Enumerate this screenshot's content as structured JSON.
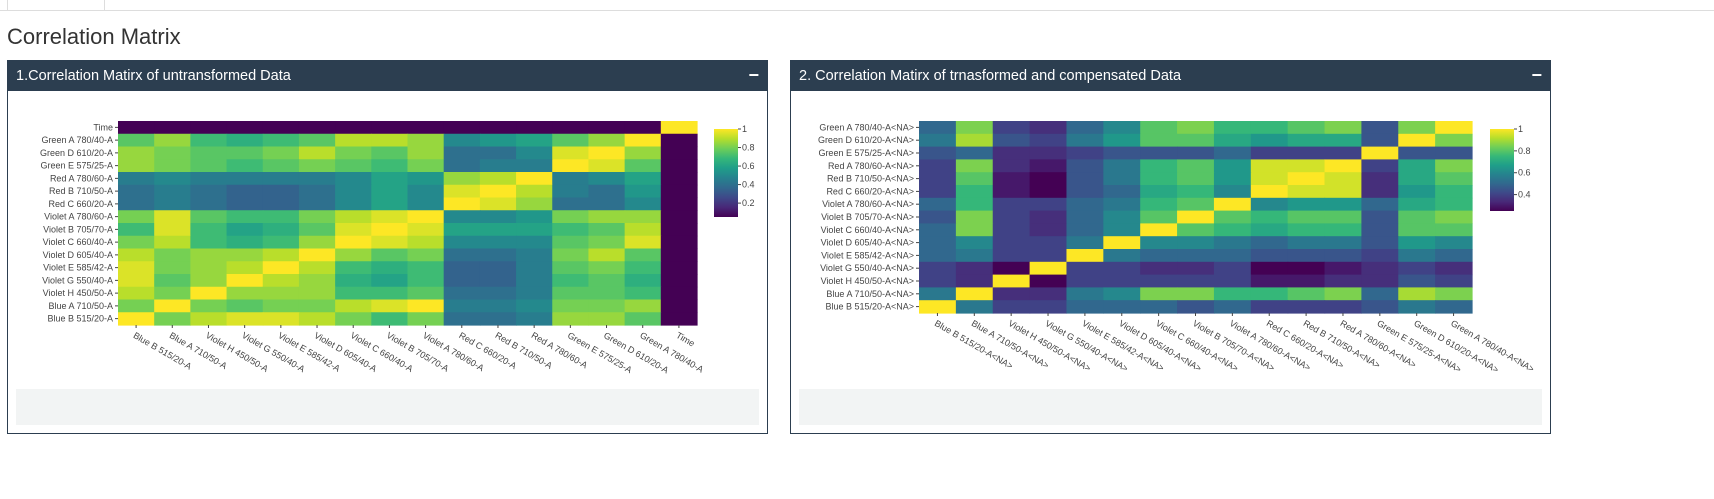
{
  "page": {
    "title": "Correlation Matrix"
  },
  "panels": [
    {
      "title": "1.Correlation Matirx of untransformed Data",
      "collapse_label": "−"
    },
    {
      "title": "2. Correlation Matirx of trnasformed and compensated Data",
      "collapse_label": "−"
    }
  ],
  "colors": {
    "header": "#2c3e50",
    "viridis": [
      "#440154",
      "#482878",
      "#3e4989",
      "#31688e",
      "#26828e",
      "#1f9e89",
      "#35b779",
      "#6ece58",
      "#b5de2b",
      "#fde725"
    ]
  },
  "chart_data": [
    {
      "type": "heatmap",
      "title": "",
      "xlabel": "",
      "ylabel": "",
      "x": [
        "Blue B 515/20-A",
        "Blue A 710/50-A",
        "Violet H 450/50-A",
        "Violet G 550/40-A",
        "Violet E 585/42-A",
        "Violet D 605/40-A",
        "Violet C 660/40-A",
        "Violet B 705/70-A",
        "Violet A 780/60-A",
        "Red C 660/20-A",
        "Red B 710/50-A",
        "Red A 780/60-A",
        "Green E 575/25-A",
        "Green D 610/20-A",
        "Green A 780/40-A",
        "Time"
      ],
      "y": [
        "Time",
        "Green A 780/40-A",
        "Green D 610/20-A",
        "Green E 575/25-A",
        "Red A 780/60-A",
        "Red B 710/50-A",
        "Red C 660/20-A",
        "Violet A 780/60-A",
        "Violet B 705/70-A",
        "Violet C 660/40-A",
        "Violet D 605/40-A",
        "Violet E 585/42-A",
        "Violet G 550/40-A",
        "Violet H 450/50-A",
        "Blue A 710/50-A",
        "Blue B 515/20-A"
      ],
      "colorscale": "viridis",
      "colorbar": {
        "ticks": [
          0.2,
          0.4,
          0.6,
          0.8,
          1
        ],
        "range": [
          0.05,
          1
        ]
      },
      "z": [
        [
          0.05,
          0.05,
          0.05,
          0.05,
          0.05,
          0.05,
          0.05,
          0.05,
          0.05,
          0.05,
          0.05,
          0.05,
          0.05,
          0.05,
          0.05,
          1
        ],
        [
          0.75,
          0.85,
          0.7,
          0.65,
          0.7,
          0.75,
          0.9,
          0.9,
          0.85,
          0.5,
          0.55,
          0.6,
          0.75,
          0.85,
          1,
          0.05
        ],
        [
          0.85,
          0.8,
          0.75,
          0.75,
          0.8,
          0.9,
          0.8,
          0.75,
          0.85,
          0.4,
          0.4,
          0.5,
          0.95,
          1,
          0.85,
          0.05
        ],
        [
          0.85,
          0.8,
          0.75,
          0.7,
          0.75,
          0.8,
          0.75,
          0.7,
          0.8,
          0.4,
          0.45,
          0.45,
          1,
          0.95,
          0.75,
          0.05
        ],
        [
          0.45,
          0.5,
          0.45,
          0.45,
          0.45,
          0.45,
          0.5,
          0.6,
          0.55,
          0.85,
          0.9,
          1,
          0.45,
          0.5,
          0.6,
          0.05
        ],
        [
          0.4,
          0.45,
          0.4,
          0.35,
          0.35,
          0.4,
          0.5,
          0.6,
          0.5,
          0.95,
          1,
          0.9,
          0.45,
          0.4,
          0.55,
          0.05
        ],
        [
          0.4,
          0.45,
          0.4,
          0.35,
          0.35,
          0.4,
          0.5,
          0.6,
          0.5,
          1,
          0.95,
          0.85,
          0.4,
          0.4,
          0.5,
          0.05
        ],
        [
          0.8,
          0.95,
          0.75,
          0.7,
          0.7,
          0.8,
          0.9,
          0.95,
          1,
          0.5,
          0.5,
          0.55,
          0.8,
          0.85,
          0.85,
          0.05
        ],
        [
          0.7,
          0.95,
          0.7,
          0.6,
          0.65,
          0.75,
          0.95,
          1,
          0.95,
          0.6,
          0.6,
          0.6,
          0.7,
          0.75,
          0.9,
          0.05
        ],
        [
          0.8,
          0.9,
          0.7,
          0.65,
          0.7,
          0.85,
          1,
          0.95,
          0.9,
          0.5,
          0.5,
          0.5,
          0.75,
          0.8,
          0.95,
          0.05
        ],
        [
          0.9,
          0.8,
          0.85,
          0.85,
          0.9,
          1,
          0.85,
          0.75,
          0.8,
          0.4,
          0.4,
          0.45,
          0.8,
          0.9,
          0.75,
          0.05
        ],
        [
          0.95,
          0.8,
          0.85,
          0.9,
          1,
          0.9,
          0.7,
          0.65,
          0.7,
          0.35,
          0.35,
          0.45,
          0.75,
          0.8,
          0.7,
          0.05
        ],
        [
          0.95,
          0.75,
          0.85,
          1,
          0.9,
          0.85,
          0.65,
          0.6,
          0.7,
          0.35,
          0.35,
          0.45,
          0.7,
          0.75,
          0.65,
          0.05
        ],
        [
          0.9,
          0.8,
          1,
          0.85,
          0.85,
          0.85,
          0.7,
          0.7,
          0.75,
          0.4,
          0.4,
          0.45,
          0.75,
          0.75,
          0.7,
          0.05
        ],
        [
          0.8,
          1,
          0.8,
          0.75,
          0.8,
          0.8,
          0.9,
          0.95,
          1,
          0.45,
          0.45,
          0.5,
          0.8,
          0.8,
          0.85,
          0.05
        ],
        [
          1,
          0.8,
          0.9,
          0.95,
          0.95,
          0.9,
          0.8,
          0.7,
          0.8,
          0.4,
          0.4,
          0.45,
          0.85,
          0.85,
          0.75,
          0.05
        ]
      ]
    },
    {
      "type": "heatmap",
      "title": "",
      "xlabel": "",
      "ylabel": "",
      "x": [
        "Blue B 515/20-A<NA>",
        "Blue A 710/50-A<NA>",
        "Violet H 450/50-A<NA>",
        "Violet G 550/40-A<NA>",
        "Violet E 585/42-A<NA>",
        "Violet D 605/40-A<NA>",
        "Violet C 660/40-A<NA>",
        "Violet B 705/70-A<NA>",
        "Violet A 780/60-A<NA>",
        "Red C 660/20-A<NA>",
        "Red B 710/50-A<NA>",
        "Red A 780/60-A<NA>",
        "Green E 575/25-A<NA>",
        "Green D 610/20-A<NA>",
        "Green A 780/40-A<NA>"
      ],
      "y": [
        "Green A 780/40-A<NA>",
        "Green D 610/20-A<NA>",
        "Green E 575/25-A<NA>",
        "Red A 780/60-A<NA>",
        "Red B 710/50-A<NA>",
        "Red C 660/20-A<NA>",
        "Violet A 780/60-A<NA>",
        "Violet B 705/70-A<NA>",
        "Violet C 660/40-A<NA>",
        "Violet D 605/40-A<NA>",
        "Violet E 585/42-A<NA>",
        "Violet G 550/40-A<NA>",
        "Violet H 450/50-A<NA>",
        "Blue A 710/50-A<NA>",
        "Blue B 515/20-A<NA>"
      ],
      "colorscale": "viridis",
      "colorbar": {
        "ticks": [
          0.4,
          0.6,
          0.8,
          1
        ],
        "range": [
          0.25,
          1
        ]
      },
      "z": [
        [
          0.5,
          0.85,
          0.4,
          0.35,
          0.5,
          0.6,
          0.8,
          0.85,
          0.75,
          0.75,
          0.8,
          0.85,
          0.45,
          0.85,
          1
        ],
        [
          0.55,
          0.9,
          0.45,
          0.4,
          0.55,
          0.65,
          0.8,
          0.8,
          0.7,
          0.65,
          0.7,
          0.7,
          0.45,
          1,
          0.85
        ],
        [
          0.45,
          0.5,
          0.35,
          0.35,
          0.4,
          0.45,
          0.45,
          0.45,
          0.5,
          0.4,
          0.4,
          0.4,
          1,
          0.45,
          0.45
        ],
        [
          0.4,
          0.85,
          0.35,
          0.3,
          0.45,
          0.55,
          0.75,
          0.8,
          0.65,
          0.95,
          0.95,
          1,
          0.4,
          0.7,
          0.85
        ],
        [
          0.4,
          0.8,
          0.3,
          0.25,
          0.45,
          0.55,
          0.75,
          0.8,
          0.65,
          0.95,
          1,
          0.95,
          0.35,
          0.7,
          0.8
        ],
        [
          0.4,
          0.75,
          0.3,
          0.25,
          0.45,
          0.5,
          0.7,
          0.75,
          0.6,
          1,
          0.95,
          0.95,
          0.35,
          0.65,
          0.75
        ],
        [
          0.5,
          0.75,
          0.4,
          0.4,
          0.5,
          0.55,
          0.75,
          0.8,
          1,
          0.6,
          0.65,
          0.65,
          0.5,
          0.7,
          0.75
        ],
        [
          0.45,
          0.85,
          0.4,
          0.35,
          0.5,
          0.6,
          0.8,
          1,
          0.8,
          0.75,
          0.8,
          0.8,
          0.45,
          0.8,
          0.85
        ],
        [
          0.5,
          0.85,
          0.4,
          0.35,
          0.5,
          0.6,
          1,
          0.8,
          0.75,
          0.7,
          0.75,
          0.75,
          0.45,
          0.8,
          0.8
        ],
        [
          0.5,
          0.6,
          0.4,
          0.4,
          0.55,
          1,
          0.6,
          0.6,
          0.55,
          0.5,
          0.55,
          0.55,
          0.45,
          0.65,
          0.6
        ],
        [
          0.5,
          0.55,
          0.4,
          0.4,
          1,
          0.55,
          0.5,
          0.5,
          0.5,
          0.45,
          0.45,
          0.45,
          0.4,
          0.55,
          0.5
        ],
        [
          0.4,
          0.35,
          0.25,
          1,
          0.4,
          0.4,
          0.35,
          0.35,
          0.4,
          0.25,
          0.25,
          0.3,
          0.35,
          0.4,
          0.35
        ],
        [
          0.4,
          0.35,
          1,
          0.25,
          0.4,
          0.4,
          0.4,
          0.4,
          0.4,
          0.3,
          0.3,
          0.35,
          0.35,
          0.45,
          0.4
        ],
        [
          0.55,
          1,
          0.35,
          0.35,
          0.55,
          0.6,
          0.85,
          0.85,
          0.75,
          0.75,
          0.8,
          0.85,
          0.5,
          0.9,
          0.85
        ],
        [
          1,
          0.55,
          0.4,
          0.4,
          0.5,
          0.5,
          0.5,
          0.45,
          0.5,
          0.4,
          0.4,
          0.4,
          0.45,
          0.55,
          0.5
        ]
      ]
    }
  ]
}
